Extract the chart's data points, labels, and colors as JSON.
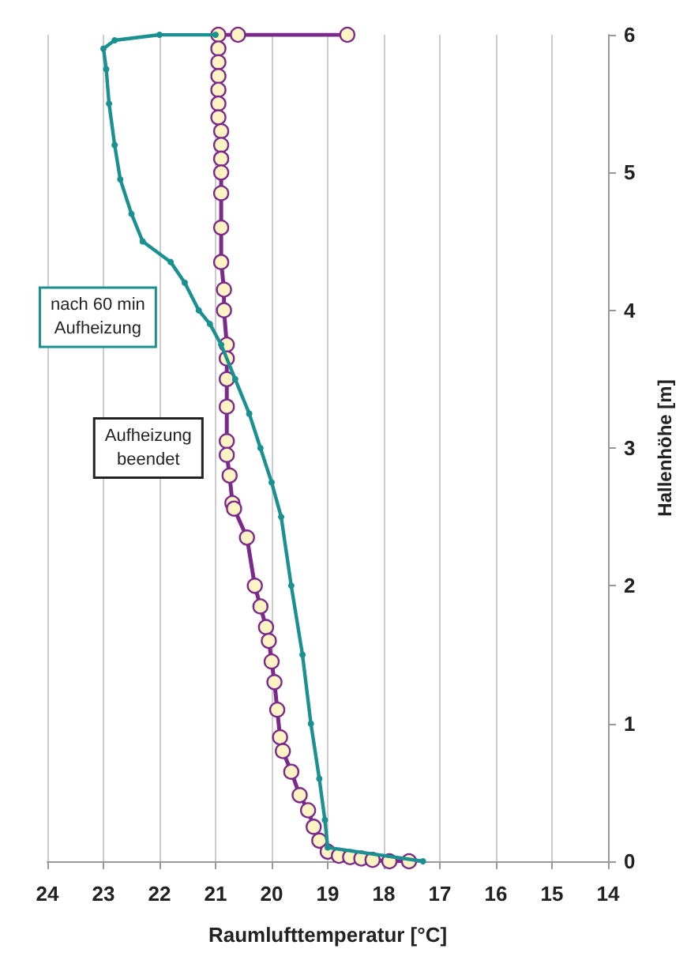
{
  "chart_data": {
    "type": "line",
    "xlabel": "Raumlufttemperatur [°C]",
    "ylabel": "Hallenhöhe [m]",
    "xlim": [
      24,
      14
    ],
    "xticks": [
      24,
      23,
      22,
      21,
      20,
      19,
      18,
      17,
      16,
      15,
      14
    ],
    "ylim": [
      0,
      6
    ],
    "yticks": [
      0,
      1,
      2,
      3,
      4,
      5,
      6
    ],
    "grid": "x",
    "legend": false,
    "marker": "circle",
    "line_style": "solid",
    "series": [
      {
        "name": "nach 60 min Aufheizung",
        "color": "#1a9090",
        "x": [
          17.3,
          19.0,
          19.05,
          19.15,
          19.3,
          19.45,
          19.65,
          19.83,
          20.0,
          20.2,
          20.4,
          20.65,
          20.9,
          21.1,
          21.3,
          21.55,
          21.8,
          22.3,
          22.5,
          22.7,
          22.8,
          22.9,
          22.95,
          23.0,
          22.8,
          22.0,
          21.0
        ],
        "values": [
          0,
          0.1,
          0.3,
          0.6,
          1.0,
          1.5,
          2.0,
          2.5,
          2.75,
          3.0,
          3.25,
          3.5,
          3.75,
          3.9,
          4.0,
          4.2,
          4.35,
          4.5,
          4.7,
          4.95,
          5.2,
          5.5,
          5.75,
          5.9,
          5.96,
          6.0,
          6.0
        ]
      },
      {
        "name": "Aufheizung beendet",
        "color": "#7b2a8c",
        "x": [
          18.65,
          20.6,
          20.95,
          20.95,
          20.95,
          20.95,
          20.95,
          20.95,
          20.95,
          20.9,
          20.9,
          20.9,
          20.9,
          20.9,
          20.9,
          20.9,
          20.85,
          20.85,
          20.8,
          20.8,
          20.8,
          20.8,
          20.8,
          20.8,
          20.75,
          20.7,
          20.67,
          20.44,
          20.3,
          20.2,
          20.1,
          20.05,
          20.0,
          19.95,
          19.9,
          19.85,
          19.8,
          19.65,
          19.5,
          19.35,
          19.25,
          19.15,
          19.0,
          18.8,
          18.6,
          18.4,
          18.2,
          17.9,
          17.55
        ],
        "values": [
          6.0,
          6.0,
          6.0,
          5.9,
          5.8,
          5.7,
          5.6,
          5.5,
          5.4,
          5.3,
          5.2,
          5.1,
          5.0,
          4.85,
          4.6,
          4.35,
          4.15,
          4.0,
          3.75,
          3.65,
          3.5,
          3.3,
          3.05,
          2.95,
          2.8,
          2.6,
          2.56,
          2.35,
          2.0,
          1.85,
          1.7,
          1.6,
          1.45,
          1.3,
          1.1,
          0.9,
          0.8,
          0.65,
          0.48,
          0.37,
          0.25,
          0.15,
          0.07,
          0.04,
          0.03,
          0.02,
          0.01,
          0,
          0
        ]
      }
    ]
  }
}
